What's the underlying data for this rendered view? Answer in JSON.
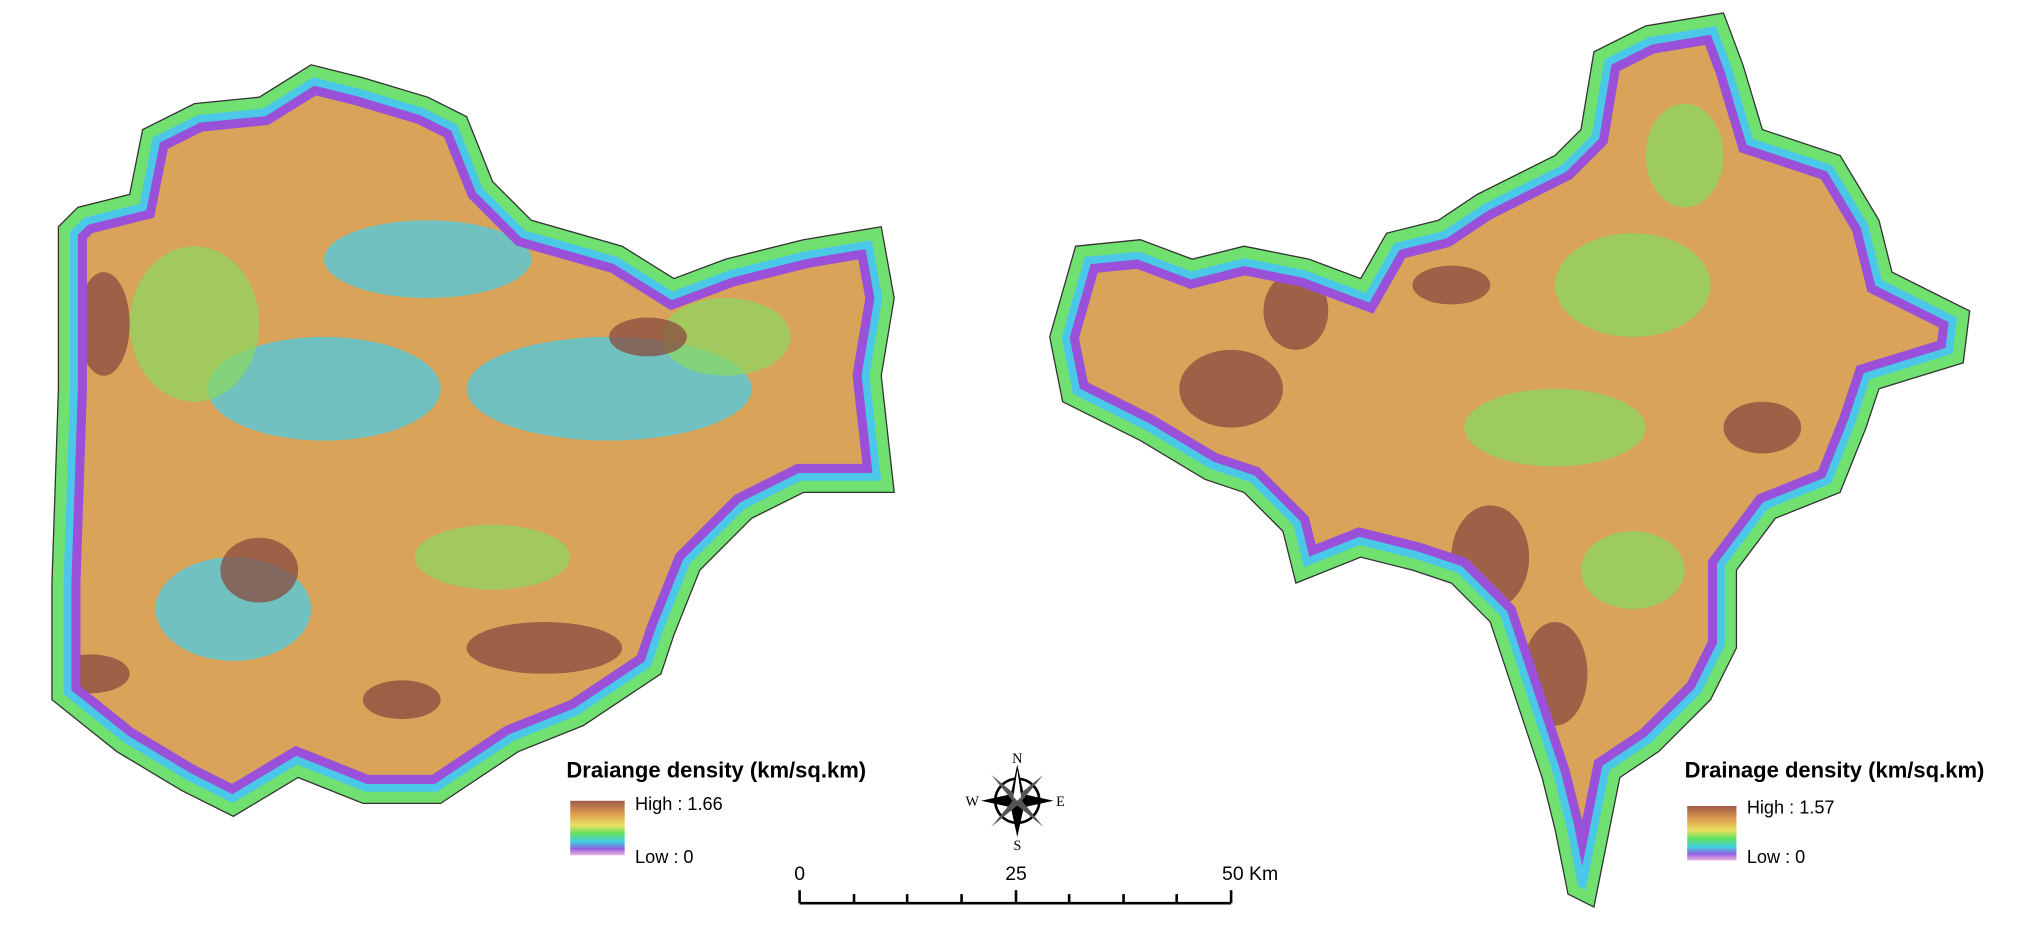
{
  "left_legend": {
    "title": "Draiange density (km/sq.km)",
    "high": "High : 1.66",
    "low": "Low : 0"
  },
  "right_legend": {
    "title": "Drainage density (km/sq.km)",
    "high": "High : 1.57",
    "low": "Low : 0"
  },
  "compass": {
    "north": "N",
    "south": "S",
    "east": "E",
    "west": "W"
  },
  "scale_bar": {
    "labels": [
      "0",
      "25",
      "50 Km"
    ]
  }
}
